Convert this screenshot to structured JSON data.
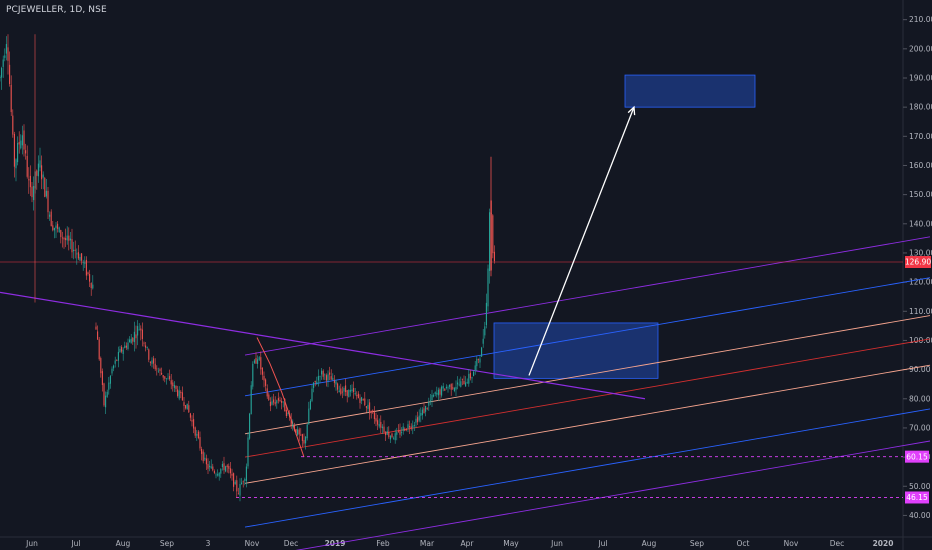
{
  "header": {
    "ticker_label": "PCJEWELLER, 1D, NSE"
  },
  "colors": {
    "background": "#131722",
    "bull": "#26a69a",
    "bear": "#ef5350",
    "text": "#b2b5be",
    "price_line": "#f23645",
    "purple": "#8e2de2",
    "magenta": "#e040fb",
    "blue": "#2962ff",
    "orange": "#f7a58f",
    "red": "#d32f2f",
    "zone": "#1e3c8a",
    "arrow": "#ffffff"
  },
  "chart_data": {
    "type": "candlestick",
    "xlabels": [
      "Jun",
      "Jul",
      "Aug",
      "Sep",
      "3",
      "Nov",
      "Dec",
      "2019",
      "Feb",
      "Mar",
      "Apr",
      "May",
      "Jun",
      "Jul",
      "Aug",
      "Sep",
      "Oct",
      "Nov",
      "Dec",
      "2020"
    ],
    "ylabels": [
      "210.00",
      "200.00",
      "190.00",
      "180.00",
      "170.00",
      "160.00",
      "150.00",
      "140.00",
      "130.00",
      "120.00",
      "110.00",
      "100.00",
      "90.00",
      "80.00",
      "70.00",
      "60.00",
      "50.00",
      "40.00"
    ],
    "ylim": [
      35,
      214
    ],
    "current_price": {
      "value": 126.9,
      "label": "126.90"
    },
    "support_levels": [
      {
        "value": 60.15,
        "label": "60.15"
      },
      {
        "value": 46.15,
        "label": "46.15"
      }
    ],
    "ohlc_segments": [
      {
        "path": [
          [
            0,
            190
          ],
          [
            7,
            205
          ],
          [
            14,
            160
          ],
          [
            22,
            172
          ],
          [
            30,
            150
          ],
          [
            40,
            160
          ],
          [
            52,
            140
          ],
          [
            64,
            135
          ],
          [
            78,
            130
          ],
          [
            94,
            118
          ]
        ],
        "range": [
          94,
          0
        ]
      },
      {
        "path": [
          [
            96,
            105
          ],
          [
            104,
            78
          ],
          [
            112,
            90
          ],
          [
            120,
            96
          ],
          [
            130,
            100
          ],
          [
            140,
            105
          ],
          [
            150,
            93
          ],
          [
            160,
            89
          ],
          [
            172,
            85
          ],
          [
            186,
            78
          ],
          [
            196,
            68
          ],
          [
            206,
            57
          ],
          [
            216,
            55
          ],
          [
            226,
            57
          ],
          [
            238,
            48
          ],
          [
            246,
            55
          ],
          [
            252,
            90
          ],
          [
            258,
            95
          ],
          [
            264,
            85
          ],
          [
            270,
            78
          ],
          [
            280,
            80
          ],
          [
            290,
            73
          ],
          [
            304,
            64
          ],
          [
            312,
            83
          ],
          [
            320,
            89
          ],
          [
            330,
            87
          ],
          [
            340,
            83
          ],
          [
            352,
            82
          ],
          [
            364,
            79
          ],
          [
            376,
            73
          ],
          [
            388,
            68
          ],
          [
            396,
            67
          ],
          [
            404,
            70
          ],
          [
            414,
            72
          ],
          [
            424,
            76
          ],
          [
            434,
            81
          ],
          [
            446,
            84
          ],
          [
            460,
            85
          ],
          [
            472,
            88
          ],
          [
            482,
            97
          ],
          [
            487,
            115
          ],
          [
            490,
            150
          ],
          [
            493,
            130
          ],
          [
            496,
            124
          ]
        ],
        "range": [
          96,
          496
        ]
      }
    ],
    "pitchfork": {
      "anchor_p1": [
        1,
        80
      ],
      "line_offsets_at_x1": [
        {
          "value": 65,
          "color": "#8e2de2"
        },
        {
          "value": 76,
          "color": "#2962ff"
        },
        {
          "value": 91,
          "color": "#f7a58f"
        },
        {
          "value": 100,
          "color": "#d32f2f"
        },
        {
          "value": 108,
          "color": "#f7a58f"
        },
        {
          "value": 121,
          "color": "#2962ff"
        },
        {
          "value": 135,
          "color": "#8e2de2"
        }
      ],
      "slope_per_px": 0.1725,
      "x_start": 245,
      "x_end": 930
    },
    "trendline": {
      "from": [
        0,
        116.5
      ],
      "to": [
        645,
        80
      ],
      "color": "#8e2de2"
    },
    "zones": [
      {
        "x1": 494,
        "x2": 658,
        "y_top": 106,
        "y_bottom": 87
      },
      {
        "x1": 625,
        "x2": 755,
        "y_top": 191,
        "y_bottom": 180
      }
    ],
    "arrow": {
      "from": [
        529,
        88
      ],
      "to": [
        634,
        180
      ]
    },
    "fork_handle": [
      [
        257,
        101
      ],
      [
        270,
        92
      ],
      [
        282,
        82
      ],
      [
        304,
        60
      ]
    ],
    "support_line_x": [
      [
        301,
        932
      ],
      [
        236,
        932
      ]
    ]
  }
}
